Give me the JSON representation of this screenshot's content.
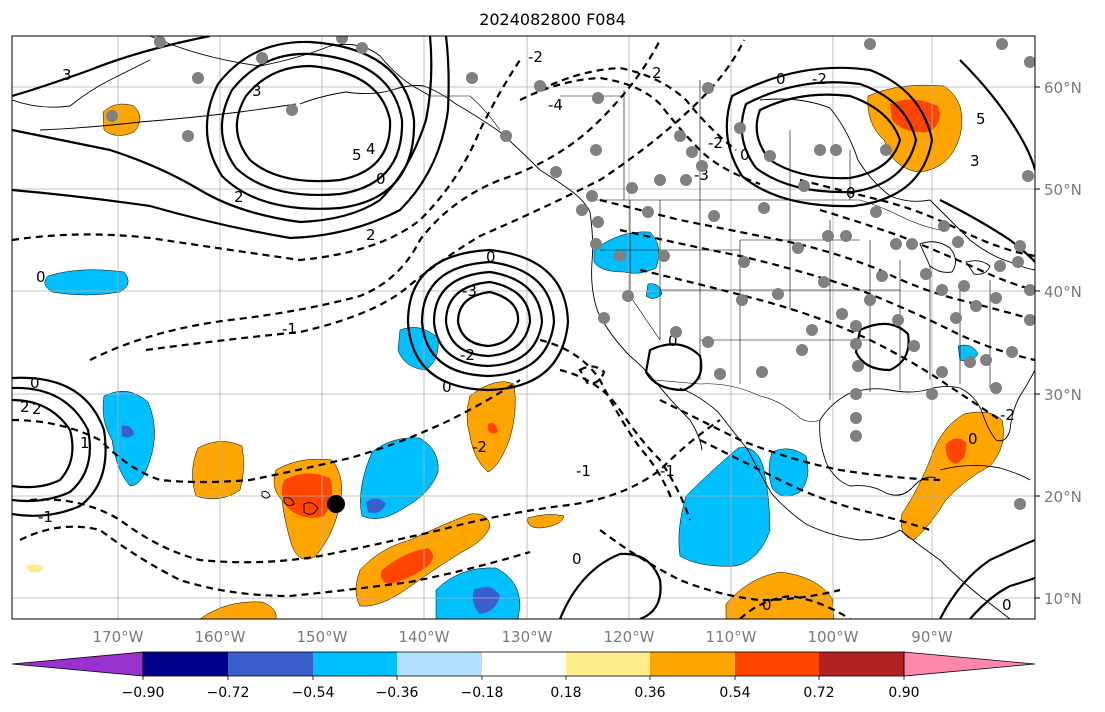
{
  "title": "2024082800 F084",
  "map": {
    "extent_lon": [
      -180,
      -80
    ],
    "extent_lat": [
      8,
      65
    ],
    "gridlines": true,
    "lon_tick_labels": [
      "170°W",
      "160°W",
      "150°W",
      "140°W",
      "130°W",
      "120°W",
      "110°W",
      "100°W",
      "90°W"
    ],
    "lat_tick_labels": [
      "60°N",
      "50°N",
      "40°N",
      "30°N",
      "20°N",
      "10°N"
    ],
    "contour_labels": [
      "3",
      "2",
      "3",
      "5",
      "4",
      "0",
      "2",
      "0",
      "-2",
      "-4",
      "2",
      "-2",
      "0",
      "-3",
      "0",
      "-2",
      "5",
      "3",
      "0",
      "-3",
      "0",
      "-2",
      "0",
      "2",
      "-1",
      "0",
      "-2",
      "-1",
      "-1",
      "-1",
      "0",
      "0",
      "-2",
      "0",
      "0",
      "0",
      "2",
      "1"
    ],
    "marker_color": "#000000",
    "station_color": "#808080"
  },
  "colorbar": {
    "tick_labels": [
      "−0.90",
      "−0.72",
      "−0.54",
      "−0.36",
      "−0.18",
      "0.18",
      "0.36",
      "0.54",
      "0.72",
      "0.90"
    ],
    "colors": [
      "#9932cc",
      "#00008b",
      "#3a5fcd",
      "#00bfff",
      "#b0e2ff",
      "#ffffff",
      "#ffec8b",
      "#ffa500",
      "#ff4500",
      "#b22222",
      "#ff88aa"
    ]
  }
}
